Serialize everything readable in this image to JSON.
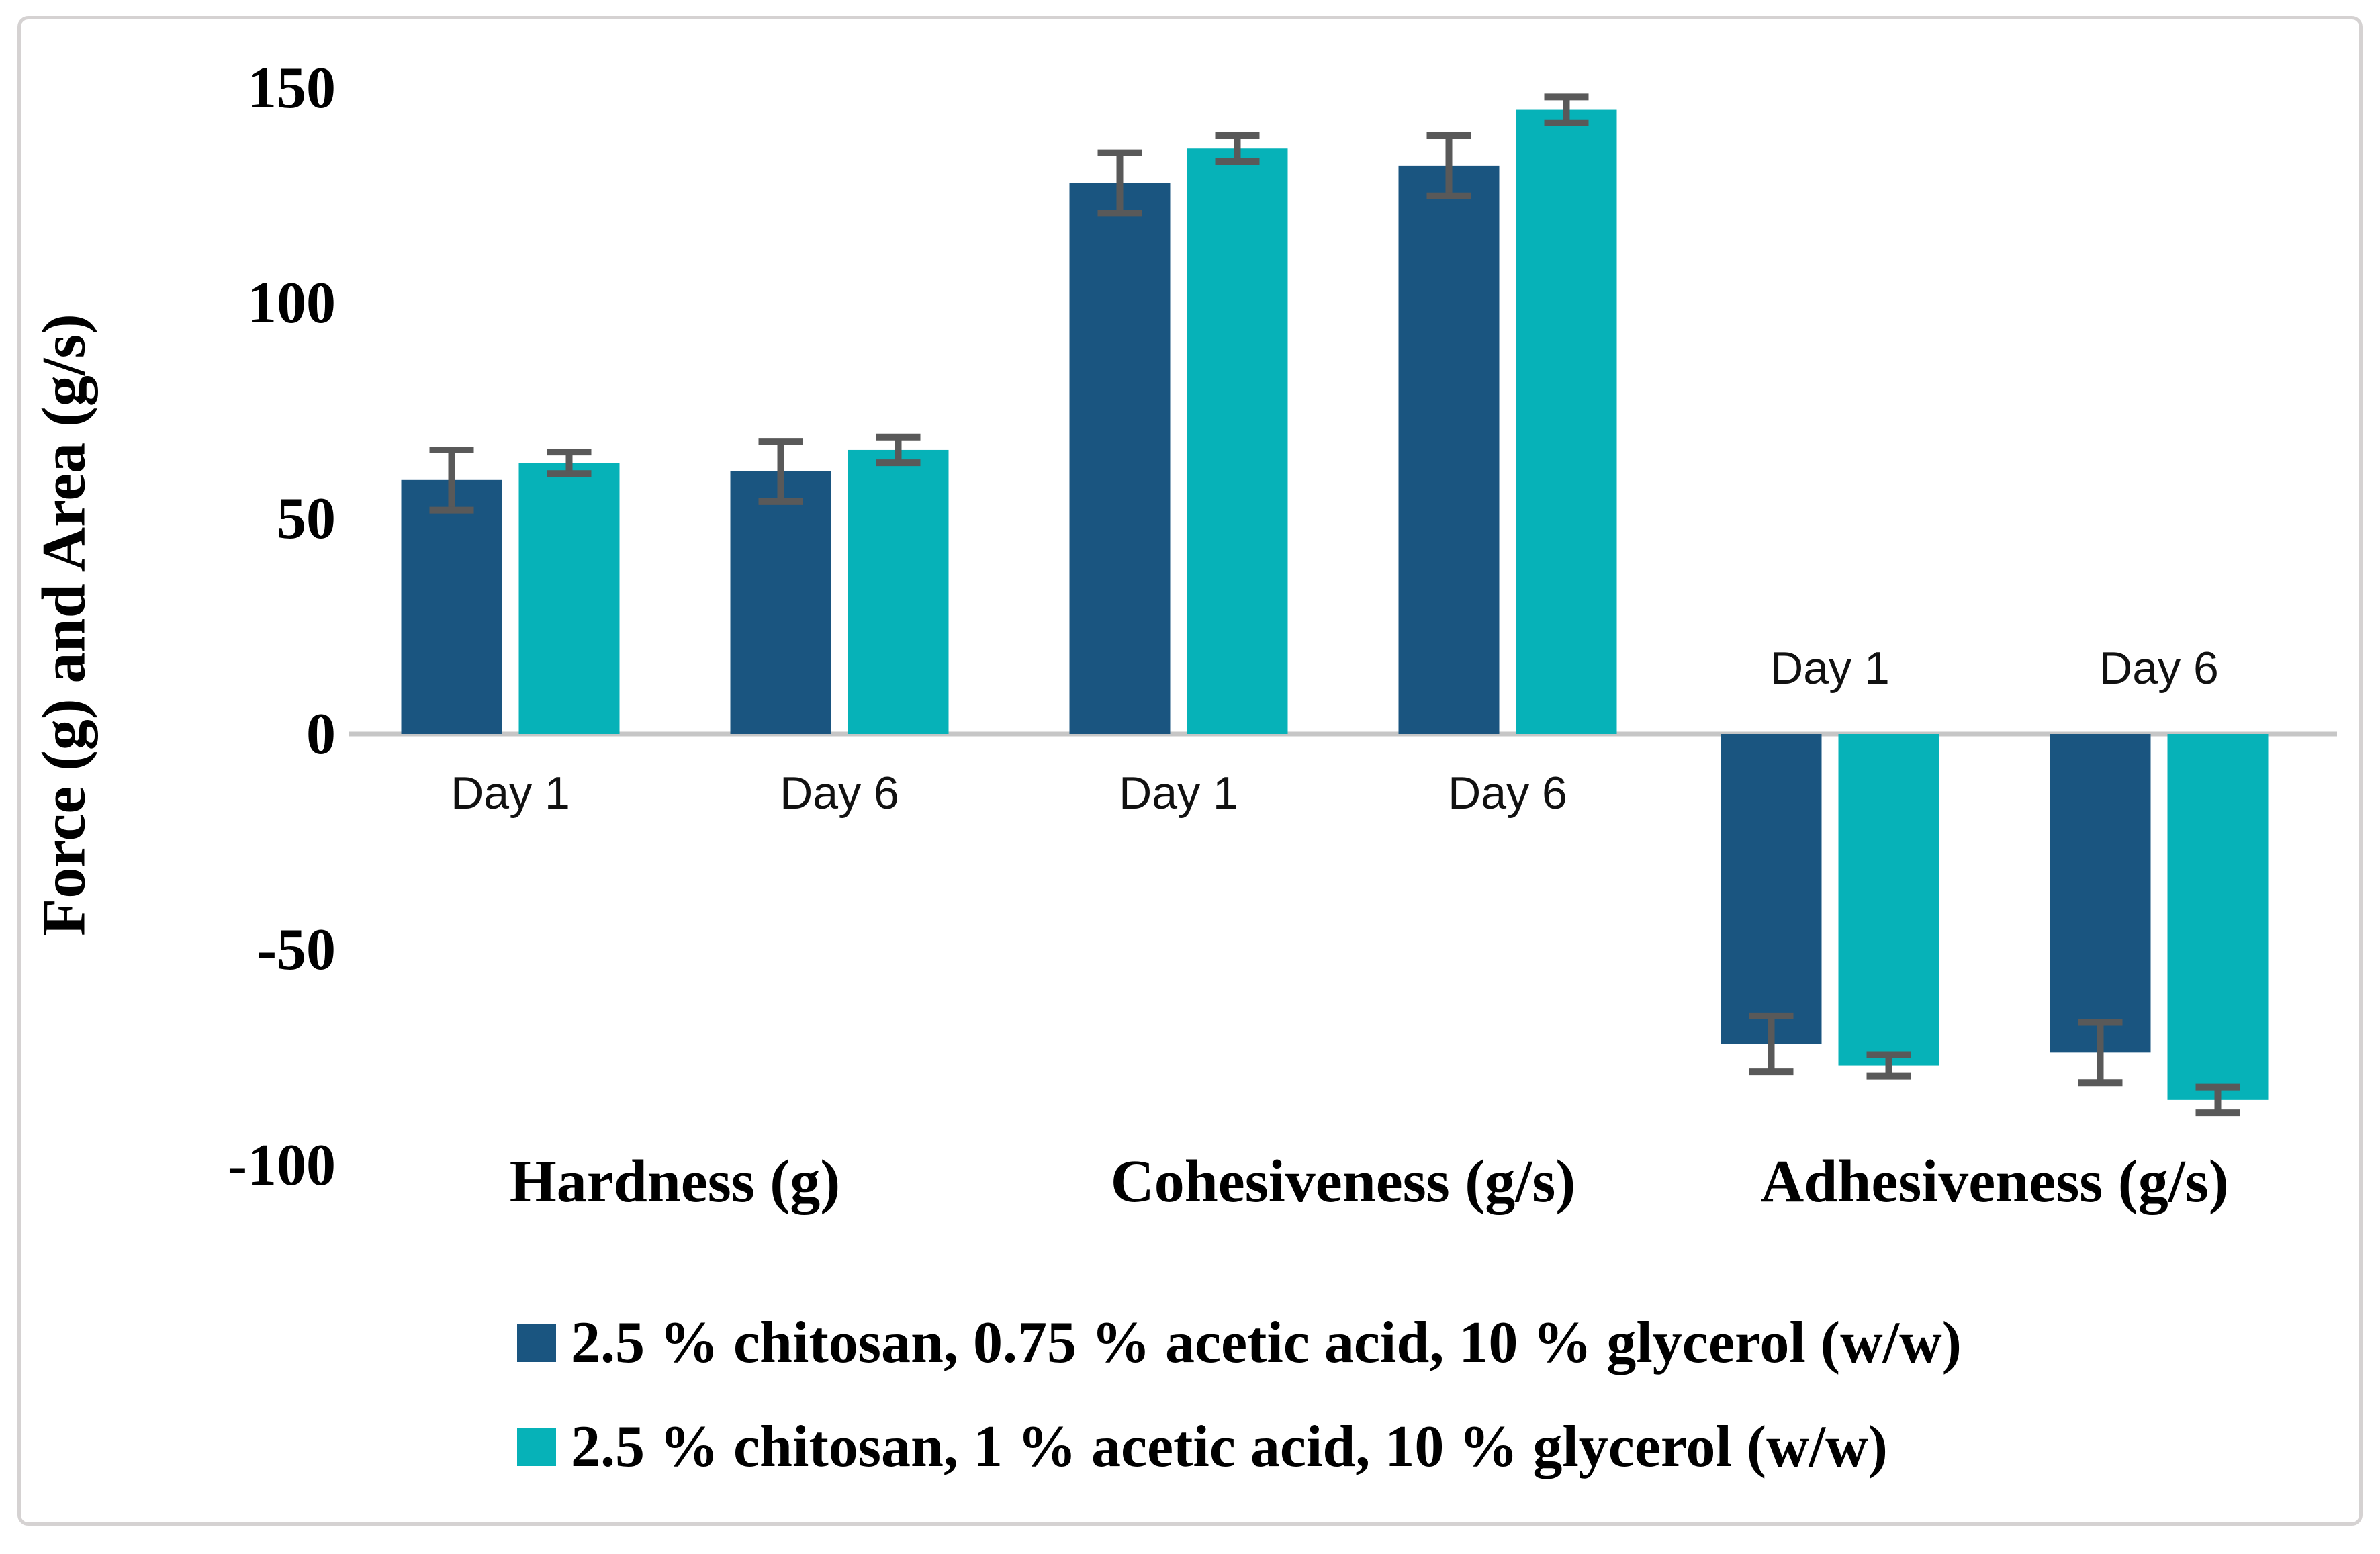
{
  "figure": {
    "background": "#ffffff",
    "border_color": "#d5d2d2"
  },
  "chart_data": {
    "type": "bar",
    "title": "",
    "ylabel": "Force (g) and Area (g/s)",
    "ylim": [
      -100,
      150
    ],
    "ytick_values": [
      150,
      100,
      50,
      0,
      -50,
      -100
    ],
    "yticks": [
      "150",
      "100",
      "50",
      "0",
      "-50",
      "-100"
    ],
    "grid": false,
    "legend_position": "bottom-left",
    "axis_color": "#c6c6c6",
    "error_bar_color": "#595959",
    "bar_order_note": "values arrays are [Hardness Day1, Hardness Day6, Cohesiveness Day1, Cohesiveness Day6, Adhesiveness Day1, Adhesiveness Day6]",
    "groups": [
      {
        "label": "Hardness (g)",
        "days": [
          "Day 1",
          "Day 6"
        ]
      },
      {
        "label": "Cohesiveness (g/s)",
        "days": [
          "Day 1",
          "Day 6"
        ]
      },
      {
        "label": "Adhesiveness (g/s)",
        "days": [
          "Day 1",
          "Day 6"
        ]
      }
    ],
    "series": [
      {
        "name": "2.5 % chitosan, 0.75 % acetic acid, 10 % glycerol (w/w)",
        "color": "#1a5580",
        "values": [
          59,
          61,
          128,
          132,
          -72,
          -74
        ],
        "errors": [
          7,
          7,
          7,
          7,
          6.5,
          7
        ]
      },
      {
        "name": "2.5 % chitosan, 1 % acetic acid, 10 % glycerol (w/w)",
        "color": "#06b2b8",
        "values": [
          63,
          66,
          136,
          145,
          -77,
          -85
        ],
        "errors": [
          2.5,
          3,
          3,
          3,
          2.5,
          3
        ]
      }
    ]
  }
}
